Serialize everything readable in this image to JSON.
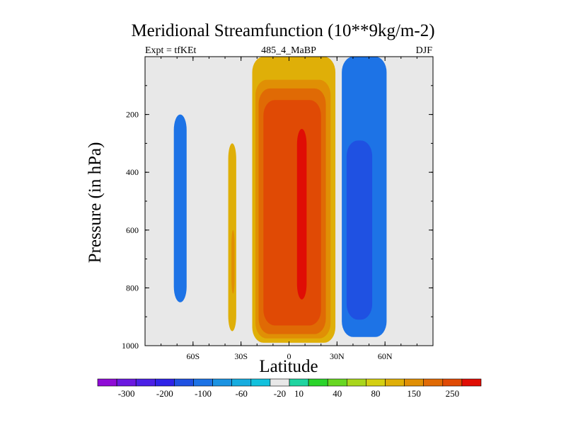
{
  "chart_data": {
    "type": "heatmap",
    "title": "Meridional Streamfunction (10**9kg/m-2)",
    "subtitle_left": "Expt = tfKEt",
    "subtitle_center": "485_4_MaBP",
    "subtitle_right": "DJF",
    "xlabel": "Latitude",
    "ylabel": "Pressure (in hPa)",
    "x_tick_labels": [
      "60S",
      "30S",
      "0",
      "30N",
      "60N"
    ],
    "x_tick_values": [
      -60,
      -30,
      0,
      30,
      60
    ],
    "xlim": [
      -90,
      90
    ],
    "y_tick_labels": [
      "200",
      "400",
      "600",
      "800",
      "1000"
    ],
    "y_tick_values": [
      200,
      400,
      600,
      800,
      1000
    ],
    "ylim": [
      0,
      1000
    ],
    "colorbar_labels": [
      "-300",
      "-200",
      "-100",
      "-60",
      "-20",
      "10",
      "40",
      "80",
      "150",
      "250"
    ],
    "colorbar_colors": [
      "#8f0bd6",
      "#6b18e0",
      "#4b20e6",
      "#2f23e8",
      "#1f51e2",
      "#1d73e6",
      "#1b93e2",
      "#16acdf",
      "#12c1dd",
      "#e8e8e8",
      "#1fd4a0",
      "#2bd42b",
      "#67d722",
      "#a9d61c",
      "#d4cf12",
      "#dfaf08",
      "#e08f05",
      "#e06a05",
      "#e04a05",
      "#e00d05"
    ],
    "background_color": "#e8e8e8",
    "regions": [
      {
        "label": "southern hemisphere negative cell",
        "level": -20,
        "lat_min": -72,
        "lat_max": -64,
        "p_top": 200,
        "p_bottom": 850
      },
      {
        "label": "weak southern positive cell",
        "level": 10,
        "lat_min": -38,
        "lat_max": -33,
        "p_top": 300,
        "p_bottom": 950
      },
      {
        "label": "weak southern positive cell core",
        "level": 40,
        "lat_min": -36,
        "lat_max": -34,
        "p_top": 600,
        "p_bottom": 820
      },
      {
        "label": "equatorial positive cell",
        "level": 10,
        "lat_min": -23,
        "lat_max": 29,
        "p_top": 0,
        "p_bottom": 990
      },
      {
        "label": "equatorial positive cell",
        "level": 40,
        "lat_min": -21,
        "lat_max": 26,
        "p_top": 80,
        "p_bottom": 975
      },
      {
        "label": "equatorial positive cell",
        "level": 80,
        "lat_min": -19,
        "lat_max": 23,
        "p_top": 110,
        "p_bottom": 960
      },
      {
        "label": "equatorial positive cell",
        "level": 150,
        "lat_min": -16,
        "lat_max": 20,
        "p_top": 150,
        "p_bottom": 930
      },
      {
        "label": "equatorial positive cell core",
        "level": 250,
        "lat_min": 5,
        "lat_max": 11,
        "p_top": 250,
        "p_bottom": 840
      },
      {
        "label": "northern negative cell",
        "level": -20,
        "lat_min": 33,
        "lat_max": 61,
        "p_top": 0,
        "p_bottom": 970
      },
      {
        "label": "northern negative cell core",
        "level": -60,
        "lat_min": 36,
        "lat_max": 52,
        "p_top": 290,
        "p_bottom": 910
      }
    ]
  }
}
